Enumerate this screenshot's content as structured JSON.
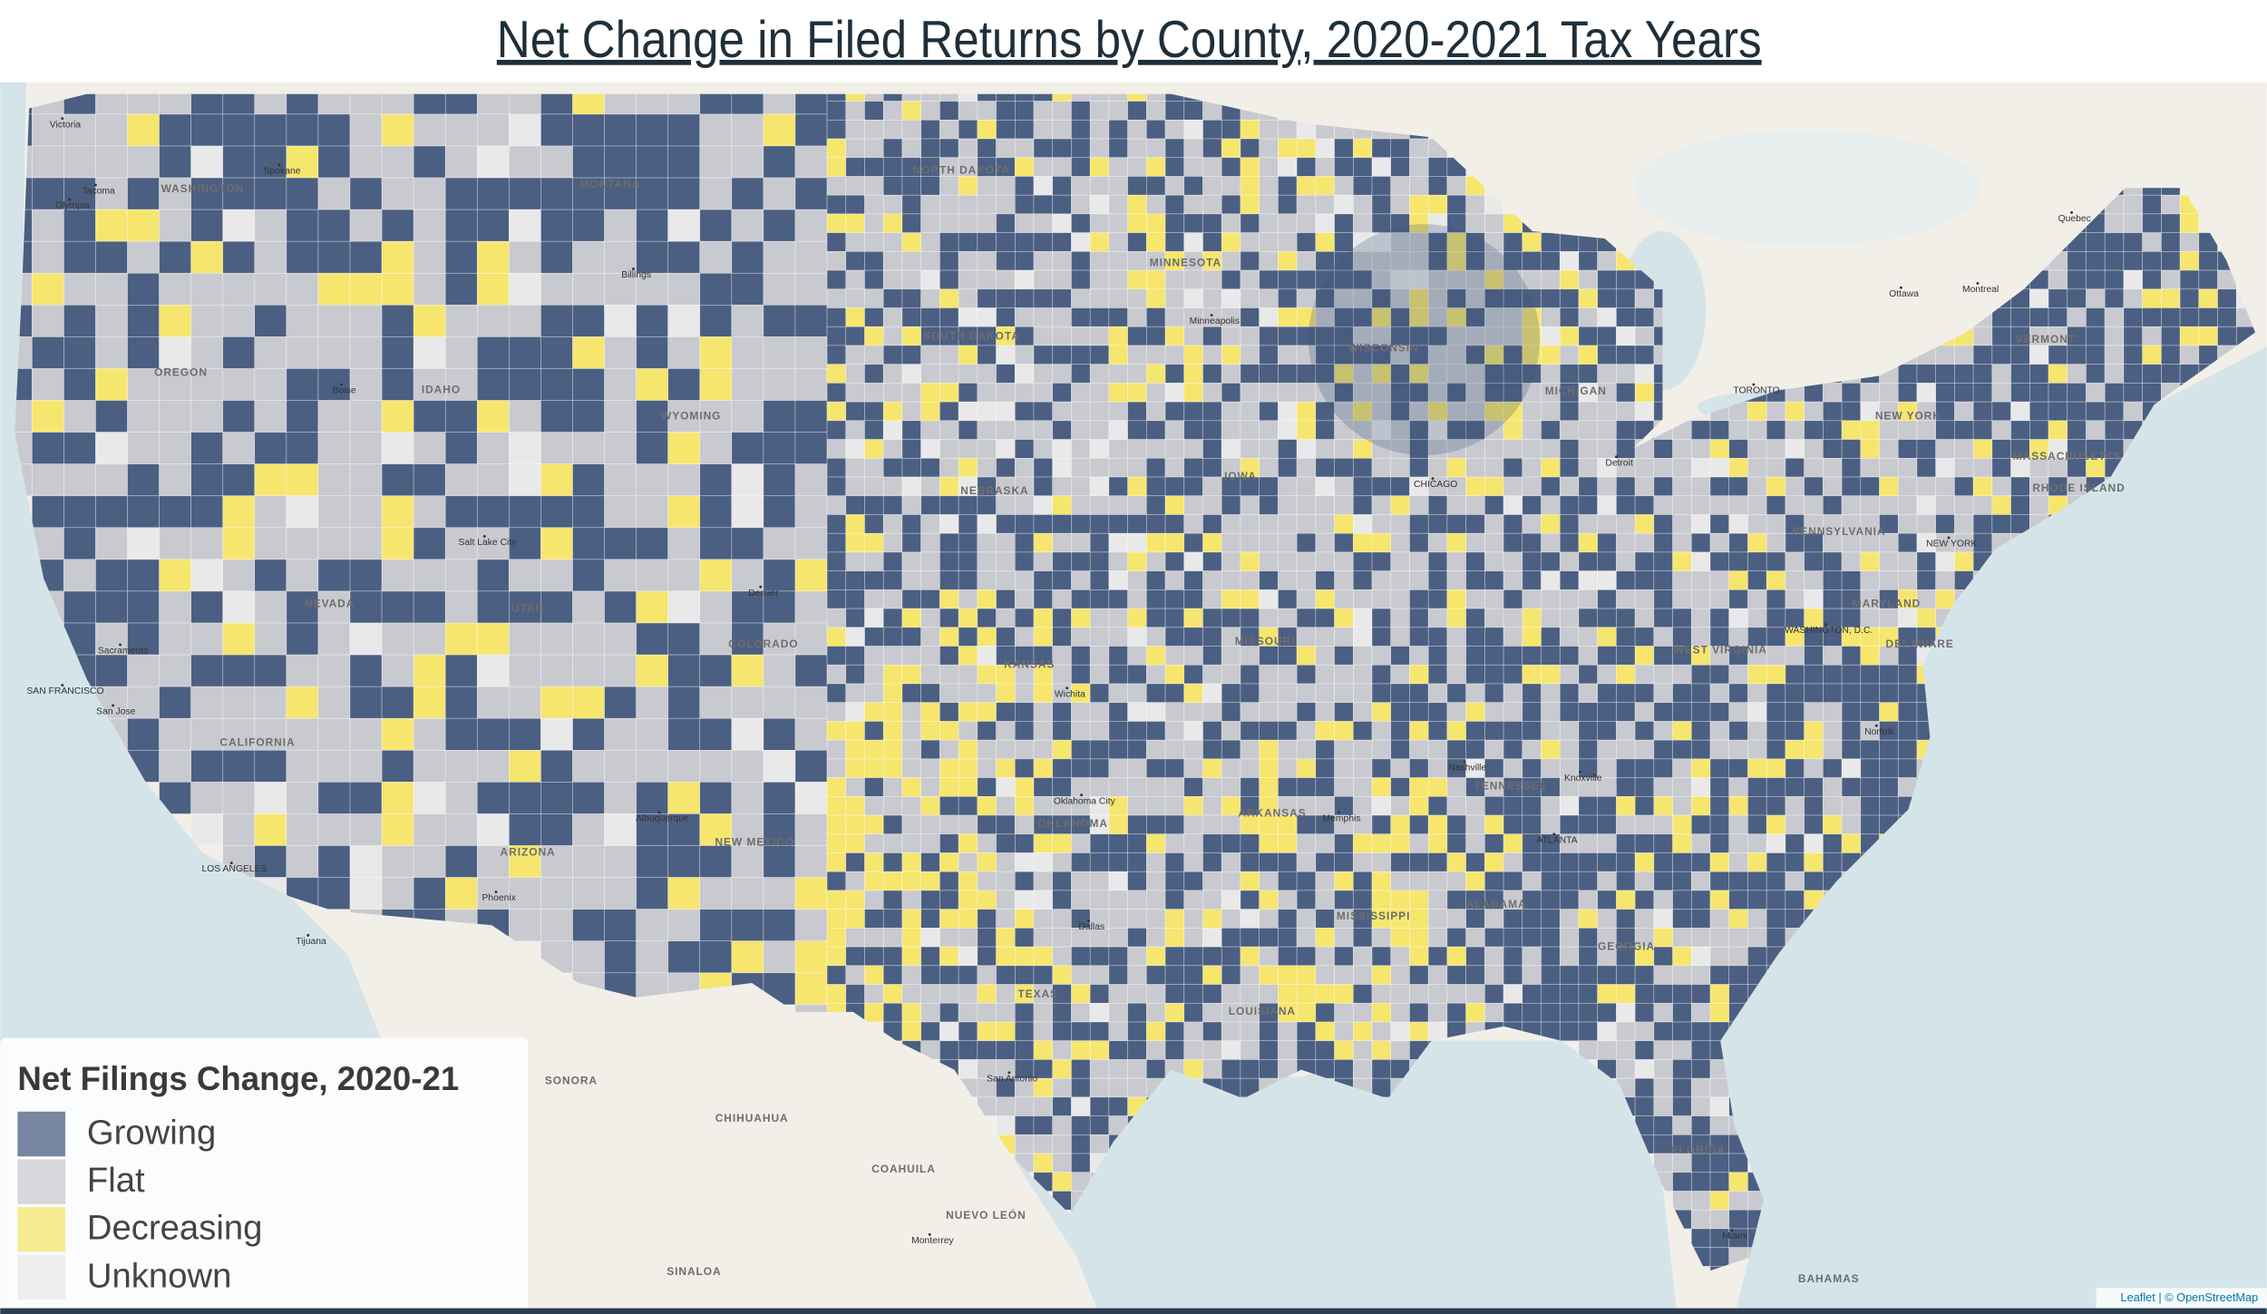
{
  "title": "Net Change in Filed Returns by County, 2020-2021 Tax Years",
  "legend": {
    "title": "Net Filings Change, 2020-21",
    "items": [
      {
        "label": "Growing",
        "color": "#4b5f82"
      },
      {
        "label": "Flat",
        "color": "#c9cacf"
      },
      {
        "label": "Decreasing",
        "color": "#f6e66e"
      },
      {
        "label": "Unknown",
        "color": "#e9e9ea"
      }
    ]
  },
  "map_labels": {
    "regions": [
      "WASHINGTON",
      "OREGON",
      "CALIFORNIA",
      "NEVADA",
      "IDAHO",
      "MONTANA",
      "WYOMING",
      "UTAH",
      "ARIZONA",
      "COLORADO",
      "NEW MEXICO",
      "NORTH DAKOTA",
      "SOUTH DAKOTA",
      "NEBRASKA",
      "KANSAS",
      "OKLAHOMA",
      "TEXAS",
      "MINNESOTA",
      "IOWA",
      "MISSOURI",
      "ARKANSAS",
      "LOUISIANA",
      "WISCONSIN",
      "MICHIGAN",
      "TENNESSEE",
      "MISSISSIPPI",
      "ALABAMA",
      "GEORGIA",
      "FLORIDA",
      "WEST VIRGINIA",
      "PENNSYLVANIA",
      "NEW YORK",
      "MARYLAND",
      "DELAWARE",
      "VERMONT",
      "MASSACHUSETTS",
      "RHODE ISLAND",
      "SONORA",
      "CHIHUAHUA",
      "COAHUILA",
      "NUEVO LEÓN",
      "SINALOA",
      "BAHAMAS"
    ],
    "cities": [
      "Olympia",
      "Tacoma",
      "Spokane",
      "Boise",
      "Salt Lake City",
      "Denver",
      "Phoenix",
      "LOS ANGELES",
      "SAN FRANCISCO",
      "San Jose",
      "Sacramento",
      "Dallas",
      "San Antonio",
      "Oklahoma City",
      "CHICAGO",
      "Detroit",
      "ATLANTA",
      "Nashville",
      "WASHINGTON, D.C.",
      "NEW YORK",
      "TORONTO",
      "Montreal",
      "Ottawa",
      "Quebec",
      "Monterrey",
      "Miami",
      "Memphis",
      "Minneapolis",
      "Billings",
      "Albuquerque",
      "Wichita",
      "Knoxville",
      "Norfolk",
      "Victoria",
      "Tijuana"
    ]
  },
  "attribution": "Leaflet | © OpenStreetMap"
}
